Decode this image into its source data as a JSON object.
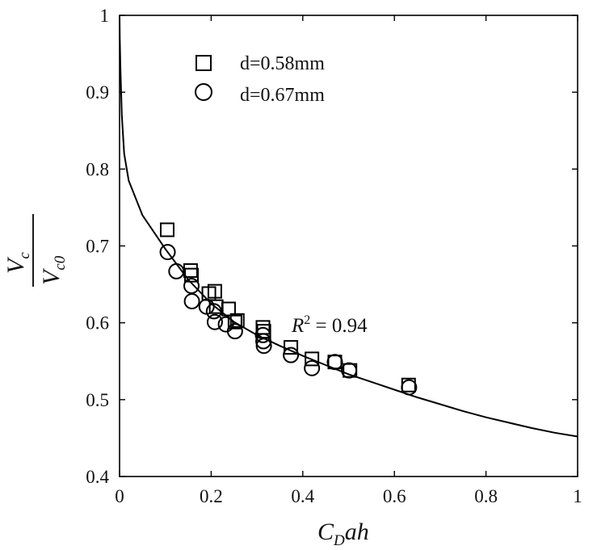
{
  "chart_data": {
    "type": "scatter",
    "title": "",
    "xlabel": "C_Dah",
    "ylabel": "V_c / V_c0",
    "xlim": [
      0,
      1
    ],
    "ylim": [
      0.4,
      1
    ],
    "xticks": [
      "0",
      "0.2",
      "0.4",
      "0.6",
      "0.8",
      "1"
    ],
    "yticks": [
      "0.4",
      "0.5",
      "0.6",
      "0.7",
      "0.8",
      "0.9",
      "1"
    ],
    "grid": false,
    "legend_position": "top-left",
    "annotation": "R^2 = 0.94",
    "series": [
      {
        "name": "d=0.58mm",
        "marker": "square",
        "points": [
          [
            0.104,
            0.721
          ],
          [
            0.155,
            0.668
          ],
          [
            0.157,
            0.662
          ],
          [
            0.195,
            0.638
          ],
          [
            0.208,
            0.641
          ],
          [
            0.211,
            0.621
          ],
          [
            0.238,
            0.618
          ],
          [
            0.252,
            0.601
          ],
          [
            0.257,
            0.603
          ],
          [
            0.313,
            0.594
          ],
          [
            0.315,
            0.589
          ],
          [
            0.374,
            0.568
          ],
          [
            0.42,
            0.553
          ],
          [
            0.47,
            0.549
          ],
          [
            0.503,
            0.538
          ],
          [
            0.631,
            0.519
          ]
        ]
      },
      {
        "name": "d=0.67mm",
        "marker": "circle",
        "points": [
          [
            0.105,
            0.692
          ],
          [
            0.124,
            0.667
          ],
          [
            0.157,
            0.648
          ],
          [
            0.158,
            0.628
          ],
          [
            0.19,
            0.621
          ],
          [
            0.206,
            0.615
          ],
          [
            0.208,
            0.601
          ],
          [
            0.232,
            0.598
          ],
          [
            0.252,
            0.589
          ],
          [
            0.313,
            0.584
          ],
          [
            0.314,
            0.576
          ],
          [
            0.315,
            0.57
          ],
          [
            0.374,
            0.558
          ],
          [
            0.42,
            0.541
          ],
          [
            0.47,
            0.549
          ],
          [
            0.501,
            0.538
          ],
          [
            0.632,
            0.516
          ]
        ]
      }
    ],
    "fit_curve": {
      "points": [
        [
          0.0005,
          0.97
        ],
        [
          0.002,
          0.93
        ],
        [
          0.005,
          0.87
        ],
        [
          0.01,
          0.82
        ],
        [
          0.02,
          0.785
        ],
        [
          0.05,
          0.74
        ],
        [
          0.1,
          0.696
        ],
        [
          0.15,
          0.656
        ],
        [
          0.2,
          0.625
        ],
        [
          0.25,
          0.601
        ],
        [
          0.3,
          0.584
        ],
        [
          0.35,
          0.57
        ],
        [
          0.4,
          0.557
        ],
        [
          0.45,
          0.545
        ],
        [
          0.5,
          0.533
        ],
        [
          0.55,
          0.523
        ],
        [
          0.6,
          0.513
        ],
        [
          0.65,
          0.503
        ],
        [
          0.7,
          0.494
        ],
        [
          0.75,
          0.485
        ],
        [
          0.8,
          0.477
        ],
        [
          0.85,
          0.47
        ],
        [
          0.9,
          0.463
        ],
        [
          0.95,
          0.457
        ],
        [
          1.0,
          0.452
        ]
      ]
    }
  }
}
